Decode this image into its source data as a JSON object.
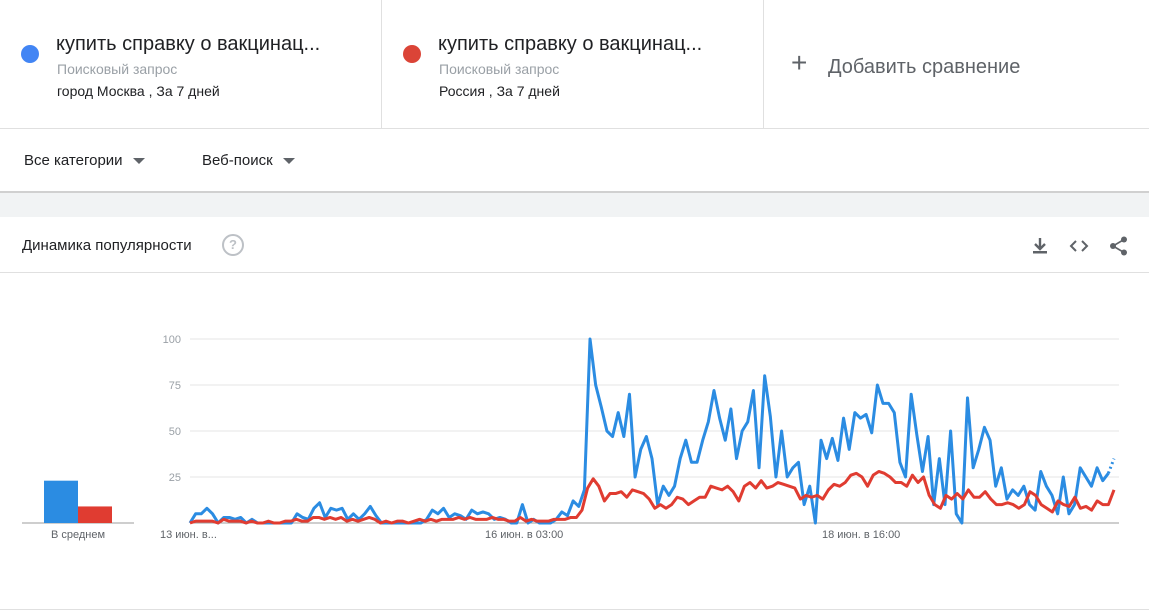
{
  "terms": [
    {
      "title": "купить справку о вакцинац...",
      "type": "Поисковый запрос",
      "geo": "город Москва , За 7 дней",
      "color": "#4285f4"
    },
    {
      "title": "купить справку о вакцинац...",
      "type": "Поисковый запрос",
      "geo": "Россия , За 7 дней",
      "color": "#db4437"
    }
  ],
  "add_compare": {
    "icon": "plus-icon",
    "label": "Добавить сравнение"
  },
  "filters": {
    "category": "Все категории",
    "search_type": "Веб-поиск"
  },
  "card": {
    "title": "Динамика популярности",
    "help_icon": "?",
    "tools": [
      "download-icon",
      "embed-icon",
      "share-icon"
    ]
  },
  "chart_data": {
    "type": "line",
    "title": "",
    "ylim": [
      0,
      100
    ],
    "yticks": [
      25,
      50,
      75,
      100
    ],
    "x_tick_labels": [
      "13 июн. в...",
      "16 июн. в 03:00",
      "18 июн. в 16:00"
    ],
    "average_label": "В среднем",
    "averages": [
      {
        "name": "купить справку о вакцинац... (Москва)",
        "value": 23
      },
      {
        "name": "купить справку о вакцинац... (Россия)",
        "value": 9
      }
    ],
    "series": [
      {
        "name": "купить справку о вакцинац... (Москва)",
        "color": "#2b8ce2",
        "values": [
          0,
          5,
          5,
          8,
          5,
          0,
          3,
          3,
          2,
          3,
          0,
          2,
          0,
          0,
          0,
          0,
          0,
          0,
          0,
          5,
          3,
          2,
          8,
          11,
          3,
          8,
          7,
          8,
          2,
          5,
          2,
          5,
          9,
          4,
          0,
          0,
          0,
          0,
          0,
          0,
          0,
          0,
          2,
          7,
          5,
          8,
          3,
          5,
          4,
          2,
          7,
          5,
          6,
          5,
          2,
          3,
          2,
          0,
          0,
          10,
          0,
          2,
          0,
          0,
          0,
          2,
          6,
          4,
          12,
          9,
          18,
          100,
          75,
          63,
          50,
          47,
          60,
          47,
          70,
          25,
          40,
          47,
          35,
          10,
          20,
          15,
          20,
          35,
          45,
          33,
          33,
          45,
          55,
          72,
          57,
          45,
          62,
          35,
          50,
          55,
          72,
          30,
          80,
          58,
          25,
          50,
          25,
          30,
          33,
          10,
          20,
          0,
          45,
          35,
          46,
          34,
          57,
          40,
          60,
          57,
          59,
          49,
          75,
          65,
          65,
          60,
          33,
          25,
          70,
          48,
          28,
          47,
          10,
          35,
          10,
          50,
          5,
          0,
          68,
          30,
          40,
          52,
          45,
          20,
          30,
          13,
          18,
          15,
          20,
          10,
          7,
          28,
          20,
          15,
          5,
          25,
          5,
          10,
          30,
          25,
          20,
          30,
          23,
          27,
          35
        ]
      },
      {
        "name": "купить справку о вакцинац... (Россия)",
        "color": "#e03c31",
        "values": [
          0,
          1,
          1,
          1,
          1,
          0,
          2,
          1,
          1,
          1,
          0,
          1,
          0,
          0,
          1,
          0,
          0,
          1,
          1,
          2,
          1,
          1,
          3,
          3,
          2,
          3,
          2,
          3,
          1,
          2,
          1,
          2,
          3,
          2,
          0,
          1,
          0,
          1,
          1,
          0,
          1,
          2,
          1,
          2,
          1,
          2,
          2,
          2,
          3,
          2,
          3,
          2,
          2,
          2,
          3,
          2,
          2,
          1,
          1,
          3,
          1,
          2,
          1,
          1,
          1,
          2,
          2,
          2,
          3,
          3,
          7,
          19,
          24,
          20,
          12,
          16,
          16,
          17,
          14,
          18,
          17,
          16,
          13,
          8,
          10,
          8,
          10,
          14,
          13,
          10,
          12,
          14,
          14,
          20,
          19,
          18,
          20,
          17,
          12,
          20,
          22,
          19,
          23,
          19,
          20,
          22,
          21,
          20,
          19,
          13,
          15,
          14,
          15,
          13,
          18,
          21,
          20,
          22,
          26,
          27,
          25,
          20,
          26,
          28,
          27,
          25,
          22,
          22,
          20,
          26,
          22,
          25,
          15,
          10,
          8,
          15,
          13,
          16,
          13,
          18,
          14,
          14,
          17,
          13,
          10,
          10,
          11,
          10,
          8,
          10,
          17,
          15,
          10,
          8,
          6,
          12,
          10,
          9,
          14,
          8,
          9,
          7,
          12,
          10,
          10,
          18
        ]
      }
    ]
  }
}
